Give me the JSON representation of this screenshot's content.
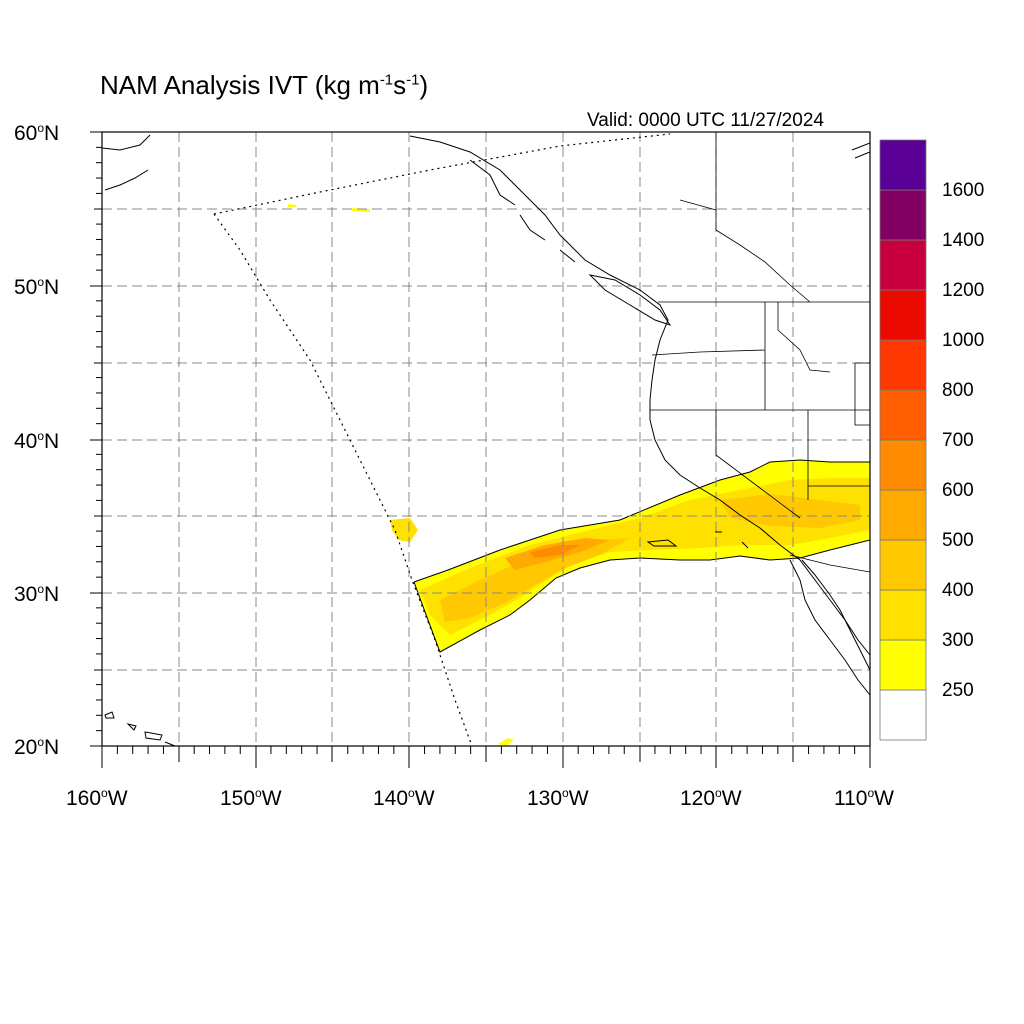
{
  "title": {
    "text": "NAM Analysis IVT (kg m",
    "exp1": "-1",
    "mid": "s",
    "exp2": "-1",
    "close": ")"
  },
  "valid_time": "Valid: 0000 UTC 11/27/2024",
  "degree_symbol": "o",
  "lat_labels": [
    {
      "value": "60",
      "hemi": "N"
    },
    {
      "value": "50",
      "hemi": "N"
    },
    {
      "value": "40",
      "hemi": "N"
    },
    {
      "value": "30",
      "hemi": "N"
    },
    {
      "value": "20",
      "hemi": "N"
    }
  ],
  "lon_labels": [
    {
      "value": "160",
      "hemi": "W"
    },
    {
      "value": "150",
      "hemi": "W"
    },
    {
      "value": "140",
      "hemi": "W"
    },
    {
      "value": "130",
      "hemi": "W"
    },
    {
      "value": "120",
      "hemi": "W"
    },
    {
      "value": "110",
      "hemi": "W"
    }
  ],
  "colorbar": {
    "labels": [
      "250",
      "300",
      "400",
      "500",
      "600",
      "700",
      "800",
      "1000",
      "1200",
      "1400",
      "1600"
    ],
    "colors": [
      "#ffffff",
      "#ffff00",
      "#ffe100",
      "#ffc800",
      "#ffaa00",
      "#ff8c00",
      "#ff5f00",
      "#ff3700",
      "#eb0a00",
      "#c80040",
      "#820064",
      "#5a0096"
    ]
  },
  "map": {
    "extent": {
      "lon": [
        -160,
        -110
      ],
      "lat": [
        20,
        60
      ]
    },
    "grid_interval_deg": 5,
    "line_color": "#000000",
    "grid_color": "#888888"
  }
}
